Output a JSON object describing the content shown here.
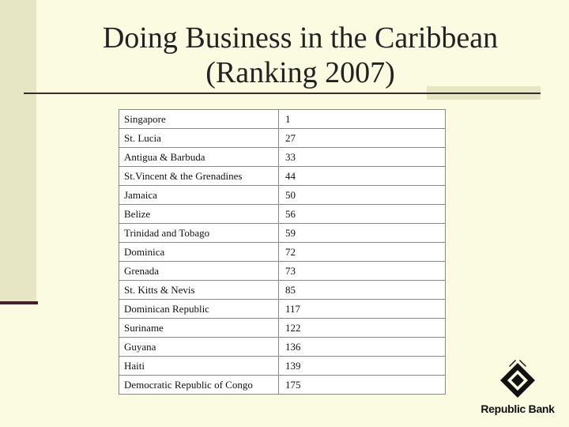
{
  "slide": {
    "title_line1": "Doing Business in the Caribbean",
    "title_line2": "(Ranking 2007)"
  },
  "rankings": [
    {
      "country": "Singapore",
      "rank": "1"
    },
    {
      "country": "St. Lucia",
      "rank": "27"
    },
    {
      "country": "Antigua & Barbuda",
      "rank": "33"
    },
    {
      "country": "St.Vincent & the Grenadines",
      "rank": "44"
    },
    {
      "country": "Jamaica",
      "rank": "50"
    },
    {
      "country": "Belize",
      "rank": "56"
    },
    {
      "country": "Trinidad and Tobago",
      "rank": "59"
    },
    {
      "country": "Dominica",
      "rank": "72"
    },
    {
      "country": "Grenada",
      "rank": "73"
    },
    {
      "country": "St. Kitts & Nevis",
      "rank": "85"
    },
    {
      "country": "Dominican Republic",
      "rank": "117"
    },
    {
      "country": "Suriname",
      "rank": "122"
    },
    {
      "country": "Guyana",
      "rank": "136"
    },
    {
      "country": "Haiti",
      "rank": "139"
    },
    {
      "country": "Democratic Republic of Congo",
      "rank": "175"
    }
  ],
  "logo": {
    "text": "Republic Bank",
    "icon": "republic-bank-diamond-icon"
  }
}
